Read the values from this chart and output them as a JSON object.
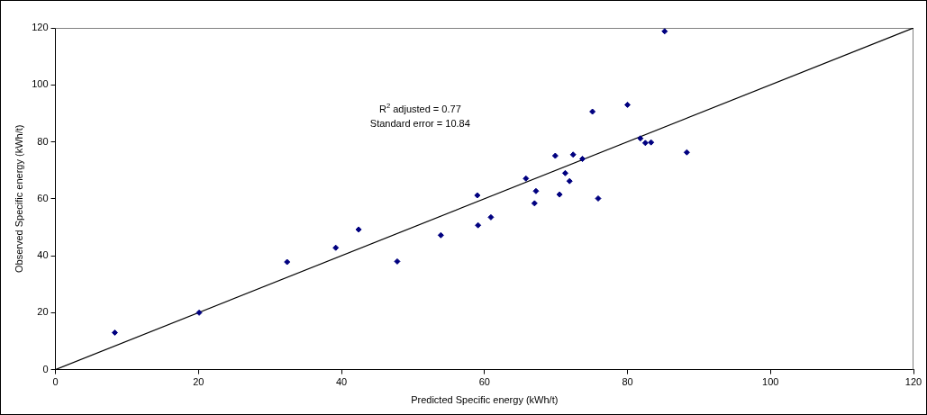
{
  "chart_data": {
    "type": "scatter",
    "xlabel": "Predicted Specific energy (kWh/t)",
    "ylabel": "Observed Specific energy (kWh/t)",
    "xlim": [
      0,
      120
    ],
    "ylim": [
      0,
      120
    ],
    "xticks": [
      0,
      20,
      40,
      60,
      80,
      100,
      120
    ],
    "yticks": [
      0,
      20,
      40,
      60,
      80,
      100,
      120
    ],
    "grid": false,
    "legend": false,
    "marker": "diamond",
    "annotations": [
      "R$^{2}$ adjusted = 0.77",
      "Standard error = 10.84"
    ],
    "series": [
      {
        "color": "#000080",
        "x": [
          8.3,
          20.1,
          32.4,
          39.2,
          42.4,
          47.8,
          53.9,
          59.1,
          59.0,
          60.9,
          65.8,
          67.2,
          67.0,
          69.9,
          70.5,
          71.3,
          71.9,
          72.4,
          73.7,
          75.9,
          75.1,
          80.0,
          85.2,
          81.8,
          82.5,
          83.3,
          88.3
        ],
        "values": [
          13.0,
          20.0,
          37.8,
          42.8,
          49.2,
          38.0,
          47.2,
          50.7,
          61.2,
          53.5,
          67.1,
          62.7,
          58.4,
          75.1,
          61.5,
          69.0,
          66.2,
          75.5,
          74.0,
          60.1,
          90.6,
          93.0,
          118.8,
          81.2,
          79.6,
          79.8,
          76.3
        ]
      },
      {
        "type": "line",
        "color": "#000000",
        "marker": "none",
        "x": [
          0,
          120
        ],
        "values": [
          0,
          120
        ]
      }
    ]
  }
}
